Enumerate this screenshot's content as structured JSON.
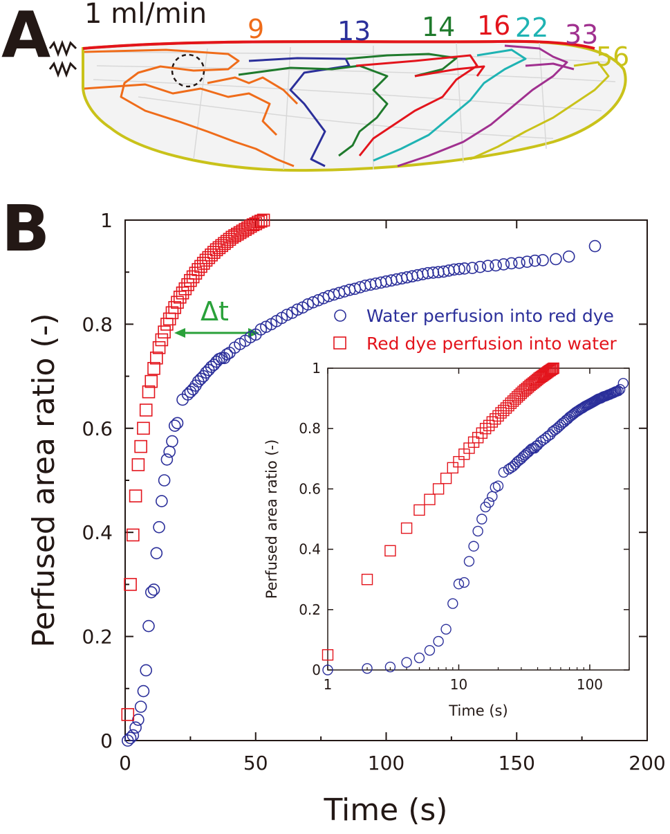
{
  "panel_a": {
    "letter": "A",
    "flow_rate_label": "1 ml/min",
    "region_labels": [
      {
        "text": "9",
        "color": "#ef6c1a"
      },
      {
        "text": "13",
        "color": "#2b2f9a"
      },
      {
        "text": "14",
        "color": "#1f7a2c"
      },
      {
        "text": "16",
        "color": "#e3141c"
      },
      {
        "text": "22",
        "color": "#1fb3b3"
      },
      {
        "text": "33",
        "color": "#a0308f"
      },
      {
        "text": "56",
        "color": "#c9c21a"
      }
    ]
  },
  "panel_b": {
    "letter": "B",
    "delta_label": "Δt",
    "delta_color": "#2aa13a"
  },
  "chart_data": [
    {
      "type": "scatter",
      "xlabel": "Time (s)",
      "ylabel": "Perfused area ratio (-)",
      "xlim": [
        0,
        200
      ],
      "ylim": [
        0,
        1
      ],
      "x_ticks": [
        "0",
        "50",
        "100",
        "150",
        "200"
      ],
      "y_ticks": [
        "0",
        "0.2",
        "0.4",
        "0.6",
        "0.8",
        "1"
      ],
      "grid": false,
      "legend_placement": "upper-right",
      "series": [
        {
          "name": "Water perfusion into red dye",
          "marker": "circle",
          "color": "#2b2f9a",
          "x": [
            1,
            2,
            3,
            4,
            5,
            6,
            7,
            8,
            9,
            10,
            11,
            12,
            13,
            14,
            15,
            16,
            17,
            18,
            19,
            20,
            22,
            24,
            25,
            26,
            27,
            28,
            29,
            30,
            31,
            32,
            33,
            34,
            35,
            36,
            37,
            38,
            39,
            40,
            42,
            44,
            46,
            48,
            50,
            52,
            54,
            56,
            58,
            60,
            62,
            64,
            66,
            68,
            70,
            72,
            74,
            76,
            78,
            80,
            82,
            84,
            86,
            88,
            90,
            92,
            94,
            96,
            98,
            100,
            102,
            104,
            106,
            108,
            110,
            112,
            114,
            116,
            118,
            120,
            122,
            124,
            126,
            128,
            130,
            133,
            136,
            139,
            142,
            145,
            148,
            151,
            154,
            157,
            160,
            165,
            170,
            180
          ],
          "y": [
            0.0,
            0.005,
            0.01,
            0.025,
            0.04,
            0.065,
            0.095,
            0.135,
            0.22,
            0.285,
            0.29,
            0.36,
            0.41,
            0.46,
            0.5,
            0.54,
            0.555,
            0.575,
            0.605,
            0.61,
            0.655,
            0.665,
            0.67,
            0.675,
            0.682,
            0.69,
            0.695,
            0.7,
            0.707,
            0.712,
            0.718,
            0.722,
            0.728,
            0.733,
            0.735,
            0.735,
            0.742,
            0.745,
            0.755,
            0.762,
            0.768,
            0.775,
            0.78,
            0.79,
            0.795,
            0.8,
            0.806,
            0.812,
            0.818,
            0.822,
            0.828,
            0.832,
            0.838,
            0.842,
            0.846,
            0.85,
            0.854,
            0.857,
            0.86,
            0.863,
            0.866,
            0.868,
            0.871,
            0.874,
            0.876,
            0.878,
            0.88,
            0.882,
            0.884,
            0.886,
            0.888,
            0.89,
            0.892,
            0.894,
            0.896,
            0.898,
            0.899,
            0.9,
            0.901,
            0.903,
            0.905,
            0.906,
            0.907,
            0.908,
            0.91,
            0.912,
            0.913,
            0.915,
            0.917,
            0.918,
            0.92,
            0.922,
            0.923,
            0.925,
            0.93,
            0.95
          ]
        },
        {
          "name": "Red dye perfusion into water",
          "marker": "square",
          "color": "#e3141c",
          "x": [
            1,
            2,
            3,
            4,
            5,
            6,
            7,
            8,
            9,
            10,
            11,
            12,
            13,
            14,
            15,
            16,
            17,
            18,
            19,
            20,
            21,
            22,
            23,
            24,
            25,
            26,
            27,
            28,
            29,
            30,
            31,
            32,
            33,
            34,
            35,
            36,
            37,
            38,
            39,
            40,
            41,
            42,
            43,
            44,
            45,
            46,
            47,
            48,
            49,
            50,
            51,
            52,
            53
          ],
          "y": [
            0.05,
            0.3,
            0.395,
            0.47,
            0.53,
            0.565,
            0.6,
            0.635,
            0.67,
            0.69,
            0.715,
            0.735,
            0.755,
            0.77,
            0.785,
            0.8,
            0.81,
            0.822,
            0.832,
            0.842,
            0.852,
            0.86,
            0.868,
            0.876,
            0.884,
            0.891,
            0.898,
            0.905,
            0.911,
            0.917,
            0.923,
            0.928,
            0.933,
            0.938,
            0.943,
            0.947,
            0.951,
            0.955,
            0.959,
            0.963,
            0.967,
            0.97,
            0.973,
            0.976,
            0.979,
            0.982,
            0.985,
            0.988,
            0.991,
            0.993,
            0.996,
            0.998,
            1.0
          ]
        }
      ]
    },
    {
      "type": "scatter",
      "xlabel": "Time (s)",
      "ylabel": "Perfused area ratio (-)",
      "xscale": "log",
      "xlim": [
        1,
        200
      ],
      "ylim": [
        0,
        1
      ],
      "x_ticks": [
        "1",
        "10",
        "100"
      ],
      "y_ticks": [
        "0",
        "0.2",
        "0.4",
        "0.6",
        "0.8",
        "1"
      ],
      "grid": false,
      "series": [
        {
          "ref": "Water perfusion into red dye",
          "marker": "circle",
          "color": "#2b2f9a"
        },
        {
          "ref": "Red dye perfusion into water",
          "marker": "square",
          "color": "#e3141c"
        }
      ]
    }
  ]
}
